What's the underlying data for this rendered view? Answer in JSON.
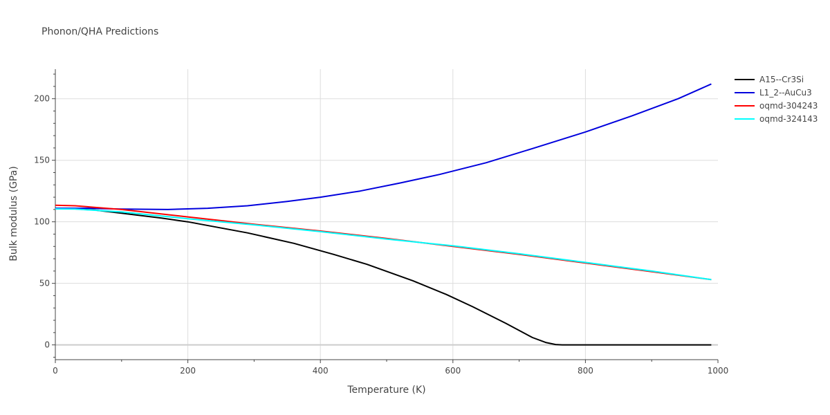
{
  "chart_data": {
    "type": "line",
    "title": "Phonon/QHA Predictions",
    "xlabel": "Temperature (K)",
    "ylabel": "Bulk modulus (GPa)",
    "xlim": [
      0,
      1000
    ],
    "ylim": [
      -12,
      224
    ],
    "x_ticks": [
      0,
      200,
      400,
      600,
      800,
      1000
    ],
    "y_ticks": [
      0,
      50,
      100,
      150,
      200
    ],
    "grid": true,
    "legend_position": "top-right",
    "series": [
      {
        "name": "A15--Cr3Si",
        "color": "#000000",
        "x": [
          0,
          30,
          60,
          100,
          130,
          160,
          200,
          240,
          290,
          360,
          420,
          470,
          540,
          590,
          630,
          680,
          720,
          740,
          755,
          765,
          800,
          900,
          990
        ],
        "y": [
          110.5,
          110.5,
          109.5,
          107,
          105,
          103,
          100,
          96,
          91,
          82.5,
          73.5,
          65.5,
          52,
          41,
          31,
          17.5,
          6,
          2,
          0.3,
          0,
          0,
          0,
          0
        ]
      },
      {
        "name": "L1_2--AuCu3",
        "color": "#0000dd",
        "x": [
          0,
          50,
          100,
          170,
          230,
          290,
          350,
          400,
          460,
          520,
          580,
          650,
          720,
          800,
          870,
          940,
          990
        ],
        "y": [
          111,
          111,
          110.3,
          110,
          111,
          113,
          116.5,
          120,
          125,
          131.5,
          138.5,
          148,
          159.5,
          173,
          186,
          200,
          212
        ]
      },
      {
        "name": "oqmd-304243",
        "color": "#ff0000",
        "x": [
          0,
          30,
          100,
          200,
          300,
          400,
          500,
          600,
          700,
          800,
          900,
          990
        ],
        "y": [
          113.5,
          113,
          110,
          104,
          98,
          92.5,
          86.5,
          80,
          73.5,
          66.5,
          59.5,
          53
        ]
      },
      {
        "name": "oqmd-324143",
        "color": "#00ffff",
        "x": [
          0,
          30,
          100,
          200,
          300,
          400,
          500,
          600,
          700,
          800,
          900,
          990
        ],
        "y": [
          110.5,
          110.3,
          108,
          102.5,
          97.5,
          92,
          86,
          80.5,
          74,
          67,
          60,
          53
        ]
      }
    ]
  }
}
